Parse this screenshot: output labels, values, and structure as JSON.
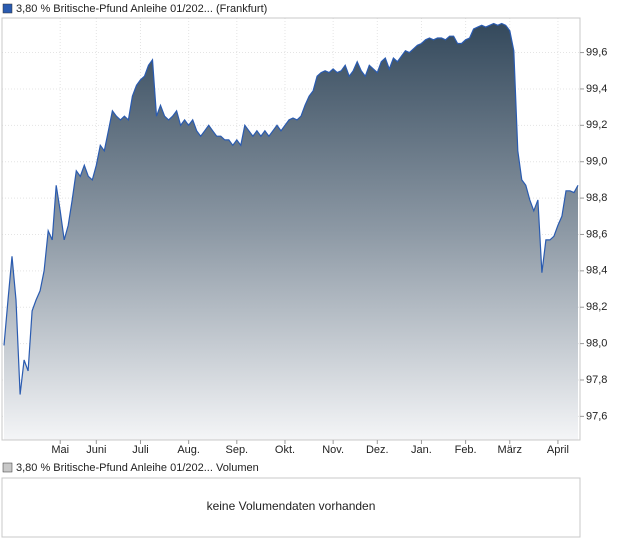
{
  "chart_data": [
    {
      "type": "area",
      "legend": "top-left",
      "grid": true,
      "series": [
        {
          "name": "3,80 % Britische-Pfund Anleihe 01/202... (Frankfurt)",
          "color": "#2a5bb0",
          "values": [
            97.99,
            98.24,
            98.48,
            98.24,
            97.72,
            97.91,
            97.85,
            98.18,
            98.24,
            98.29,
            98.4,
            98.62,
            98.57,
            98.87,
            98.73,
            98.57,
            98.65,
            98.79,
            98.95,
            98.92,
            98.98,
            98.92,
            98.9,
            98.98,
            99.09,
            99.06,
            99.17,
            99.28,
            99.25,
            99.23,
            99.25,
            99.23,
            99.36,
            99.42,
            99.45,
            99.47,
            99.53,
            99.56,
            99.25,
            99.31,
            99.25,
            99.23,
            99.25,
            99.28,
            99.2,
            99.23,
            99.2,
            99.23,
            99.17,
            99.14,
            99.17,
            99.2,
            99.17,
            99.14,
            99.14,
            99.12,
            99.12,
            99.09,
            99.12,
            99.09,
            99.2,
            99.17,
            99.14,
            99.17,
            99.14,
            99.17,
            99.14,
            99.17,
            99.2,
            99.17,
            99.2,
            99.23,
            99.24,
            99.23,
            99.25,
            99.31,
            99.36,
            99.39,
            99.47,
            99.49,
            99.5,
            99.49,
            99.51,
            99.49,
            99.5,
            99.53,
            99.47,
            99.5,
            99.55,
            99.5,
            99.47,
            99.53,
            99.51,
            99.49,
            99.55,
            99.57,
            99.51,
            99.57,
            99.55,
            99.58,
            99.61,
            99.6,
            99.62,
            99.64,
            99.65,
            99.67,
            99.68,
            99.67,
            99.68,
            99.68,
            99.67,
            99.69,
            99.69,
            99.65,
            99.65,
            99.67,
            99.68,
            99.73,
            99.74,
            99.75,
            99.74,
            99.75,
            99.76,
            99.75,
            99.76,
            99.75,
            99.72,
            99.61,
            99.06,
            98.9,
            98.87,
            98.79,
            98.73,
            98.79,
            98.39,
            98.57,
            98.57,
            98.59,
            98.65,
            98.7,
            98.84,
            98.84,
            98.83,
            98.87
          ]
        }
      ],
      "xlim": [
        0,
        143
      ],
      "xticks": [
        {
          "value": 14,
          "label": "Mai"
        },
        {
          "value": 23,
          "label": "Juni"
        },
        {
          "value": 34,
          "label": "Juli"
        },
        {
          "value": 46,
          "label": "Aug."
        },
        {
          "value": 58,
          "label": "Sep."
        },
        {
          "value": 70,
          "label": "Okt."
        },
        {
          "value": 82,
          "label": "Nov."
        },
        {
          "value": 93,
          "label": "Dez."
        },
        {
          "value": 104,
          "label": "Jan."
        },
        {
          "value": 115,
          "label": "Feb."
        },
        {
          "value": 126,
          "label": "März"
        },
        {
          "value": 138,
          "label": "April"
        }
      ],
      "ylim": [
        97.47,
        99.79
      ],
      "yticks": [
        {
          "value": 97.6,
          "label": "97,6"
        },
        {
          "value": 97.8,
          "label": "97,8"
        },
        {
          "value": 98.0,
          "label": "98,0"
        },
        {
          "value": 98.2,
          "label": "98,2"
        },
        {
          "value": 98.4,
          "label": "98,4"
        },
        {
          "value": 98.6,
          "label": "98,6"
        },
        {
          "value": 98.8,
          "label": "98,8"
        },
        {
          "value": 99.0,
          "label": "99,0"
        },
        {
          "value": 99.2,
          "label": "99,2"
        },
        {
          "value": 99.4,
          "label": "99,4"
        },
        {
          "value": 99.6,
          "label": "99,6"
        }
      ]
    },
    {
      "type": "volume",
      "legend": "top-left",
      "series": [
        {
          "name": "3,80 % Britische-Pfund Anleihe 01/202... Volumen",
          "color": "#c8c8c8"
        }
      ],
      "annotation": "keine Volumendaten vorhanden"
    }
  ]
}
